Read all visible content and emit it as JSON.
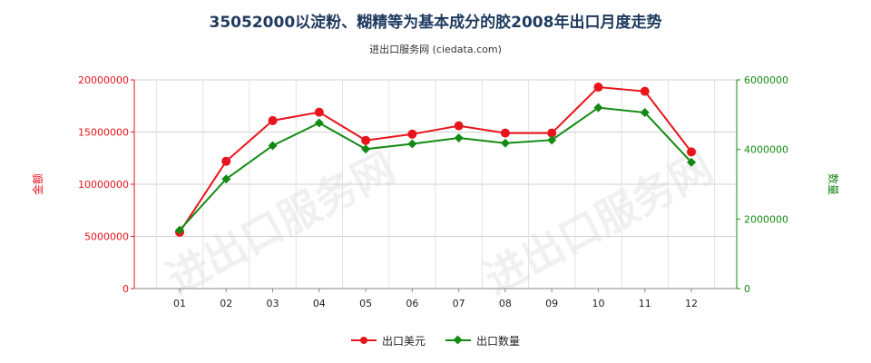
{
  "chart_data": {
    "type": "line",
    "title": "35052000以淀粉、糊精等为基本成分的胶2008年出口月度走势",
    "subtitle": "进出口服务网 (ciedata.com)",
    "categories": [
      "01",
      "02",
      "03",
      "04",
      "05",
      "06",
      "07",
      "08",
      "09",
      "10",
      "11",
      "12"
    ],
    "y_left": {
      "label": "金额",
      "ylim": [
        0,
        20000000
      ],
      "ticks": [
        "0",
        "5000000",
        "10000000",
        "15000000",
        "20000000"
      ],
      "tick_values": [
        0,
        5000000,
        10000000,
        15000000,
        20000000
      ],
      "color": "#e8141b"
    },
    "y_right": {
      "label": "数量",
      "ylim": [
        0,
        6000000
      ],
      "ticks": [
        "0",
        "2000000",
        "4000000",
        "6000000"
      ],
      "tick_values": [
        0,
        2000000,
        4000000,
        6000000
      ],
      "color": "#138a13"
    },
    "series": [
      {
        "name": "出口美元",
        "axis": "left",
        "color": "#e8141b",
        "marker": "circle",
        "values": [
          5400000,
          12200000,
          16100000,
          16900000,
          14200000,
          14800000,
          15600000,
          14900000,
          14900000,
          19300000,
          18900000,
          13100000
        ]
      },
      {
        "name": "出口数量",
        "axis": "right",
        "color": "#138a13",
        "marker": "diamond",
        "values": [
          1680000,
          3150000,
          4110000,
          4760000,
          4010000,
          4160000,
          4330000,
          4180000,
          4270000,
          5200000,
          5060000,
          3630000
        ]
      }
    ],
    "grid": true,
    "legend": "bottom-center"
  },
  "watermark": "进出口服务网"
}
